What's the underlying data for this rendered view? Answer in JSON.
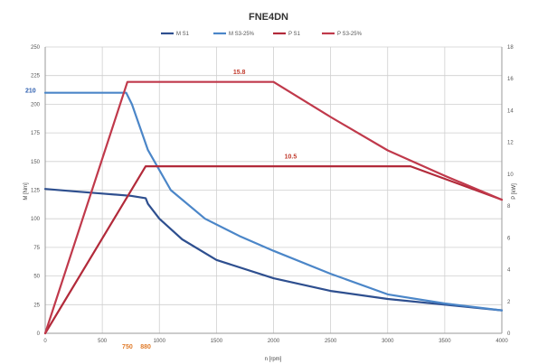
{
  "chart_data": {
    "type": "line",
    "title": "FNE4DN",
    "xlabel": "n [rpm]",
    "ylabel": "M [Nm]",
    "y2label": "P [kW]",
    "xlim": [
      0,
      4000
    ],
    "ylim": [
      0,
      250
    ],
    "y2lim": [
      0,
      18
    ],
    "grid": true,
    "legend_position": "top",
    "x_ticks": [
      "0",
      "500",
      "1000",
      "1500",
      "2000",
      "2500",
      "3000",
      "3500",
      "4000"
    ],
    "y_ticks": [
      "0",
      "25",
      "50",
      "75",
      "100",
      "125",
      "150",
      "175",
      "200",
      "225",
      "250"
    ],
    "y2_ticks": [
      "0",
      "2",
      "4",
      "6",
      "8",
      "10",
      "12",
      "14",
      "16",
      "18"
    ],
    "series": [
      {
        "name": "M S1",
        "axis": "left",
        "color": "#2e4f8f",
        "x": [
          0,
          250,
          500,
          750,
          880,
          900,
          1000,
          1200,
          1500,
          2000,
          2500,
          3000,
          3500,
          4000
        ],
        "y": [
          126,
          124,
          122,
          120,
          118,
          113,
          100,
          82,
          64,
          48,
          37,
          30,
          25,
          20
        ]
      },
      {
        "name": "M S3-25%",
        "axis": "left",
        "color": "#4b86c8",
        "x": [
          0,
          500,
          710,
          760,
          900,
          1100,
          1400,
          1700,
          2000,
          2500,
          3000,
          3500,
          4000
        ],
        "y": [
          210,
          210,
          210,
          200,
          160,
          125,
          100,
          85,
          72,
          52,
          34,
          26,
          20
        ]
      },
      {
        "name": "P S1",
        "axis": "right",
        "color": "#b22a3a",
        "x": [
          0,
          880,
          1000,
          2000,
          3000,
          3200,
          4000
        ],
        "y": [
          0,
          10.5,
          10.5,
          10.5,
          10.5,
          10.5,
          8.4
        ]
      },
      {
        "name": "P S3-25%",
        "axis": "right",
        "color": "#c0394b",
        "x": [
          0,
          720,
          1000,
          2000,
          2500,
          3000,
          3500,
          4000
        ],
        "y": [
          0,
          15.8,
          15.8,
          15.8,
          13.6,
          11.5,
          9.9,
          8.4
        ]
      }
    ],
    "annotations": [
      {
        "text": "15.8",
        "x": 1700,
        "y": 16.3,
        "axis": "right",
        "color": "#c0392b"
      },
      {
        "text": "10.5",
        "x": 2150,
        "y": 11.0,
        "axis": "right",
        "color": "#c0392b"
      },
      {
        "text": "210",
        "x": -40,
        "y": 210,
        "axis": "left",
        "color": "#2e5fb0"
      },
      {
        "text": "750",
        "x": 720,
        "y": -8,
        "axis": "left",
        "color": "#e07b2a"
      },
      {
        "text": "880",
        "x": 880,
        "y": -8,
        "axis": "left",
        "color": "#e07b2a"
      }
    ]
  }
}
